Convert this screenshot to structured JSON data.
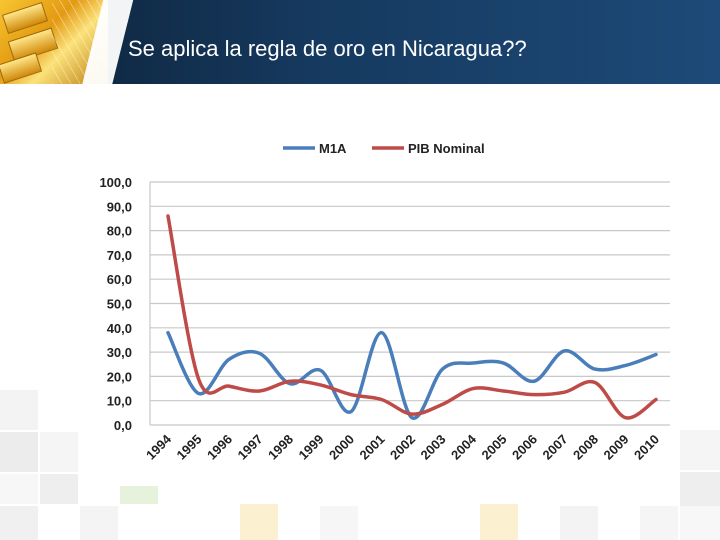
{
  "slide": {
    "title": "Se aplica la regla de oro en Nicaragua??"
  },
  "chart_data": {
    "type": "line",
    "x": [
      "1994",
      "1995",
      "1996",
      "1997",
      "1998",
      "1999",
      "2000",
      "2001",
      "2002",
      "2003",
      "2004",
      "2005",
      "2006",
      "2007",
      "2008",
      "2009",
      "2010"
    ],
    "series": [
      {
        "name": "M1A",
        "color": "#4a7ebb",
        "values": [
          38.0,
          13.0,
          27.0,
          29.5,
          17.0,
          22.5,
          5.5,
          38.0,
          3.0,
          23.0,
          25.5,
          25.5,
          18.0,
          30.5,
          23.0,
          24.5,
          29.0
        ]
      },
      {
        "name": "PIB Nominal",
        "color": "#be4b48",
        "values": [
          86.0,
          19.0,
          16.0,
          14.0,
          18.0,
          16.5,
          12.5,
          10.5,
          4.5,
          8.5,
          15.0,
          14.0,
          12.5,
          13.5,
          17.5,
          3.0,
          10.5
        ]
      }
    ],
    "yticks": [
      "0,0",
      "10,0",
      "20,0",
      "30,0",
      "40,0",
      "50,0",
      "60,0",
      "70,0",
      "80,0",
      "90,0",
      "100,0"
    ],
    "ylim": [
      0,
      100
    ],
    "grid": true,
    "legend": "top-center"
  }
}
